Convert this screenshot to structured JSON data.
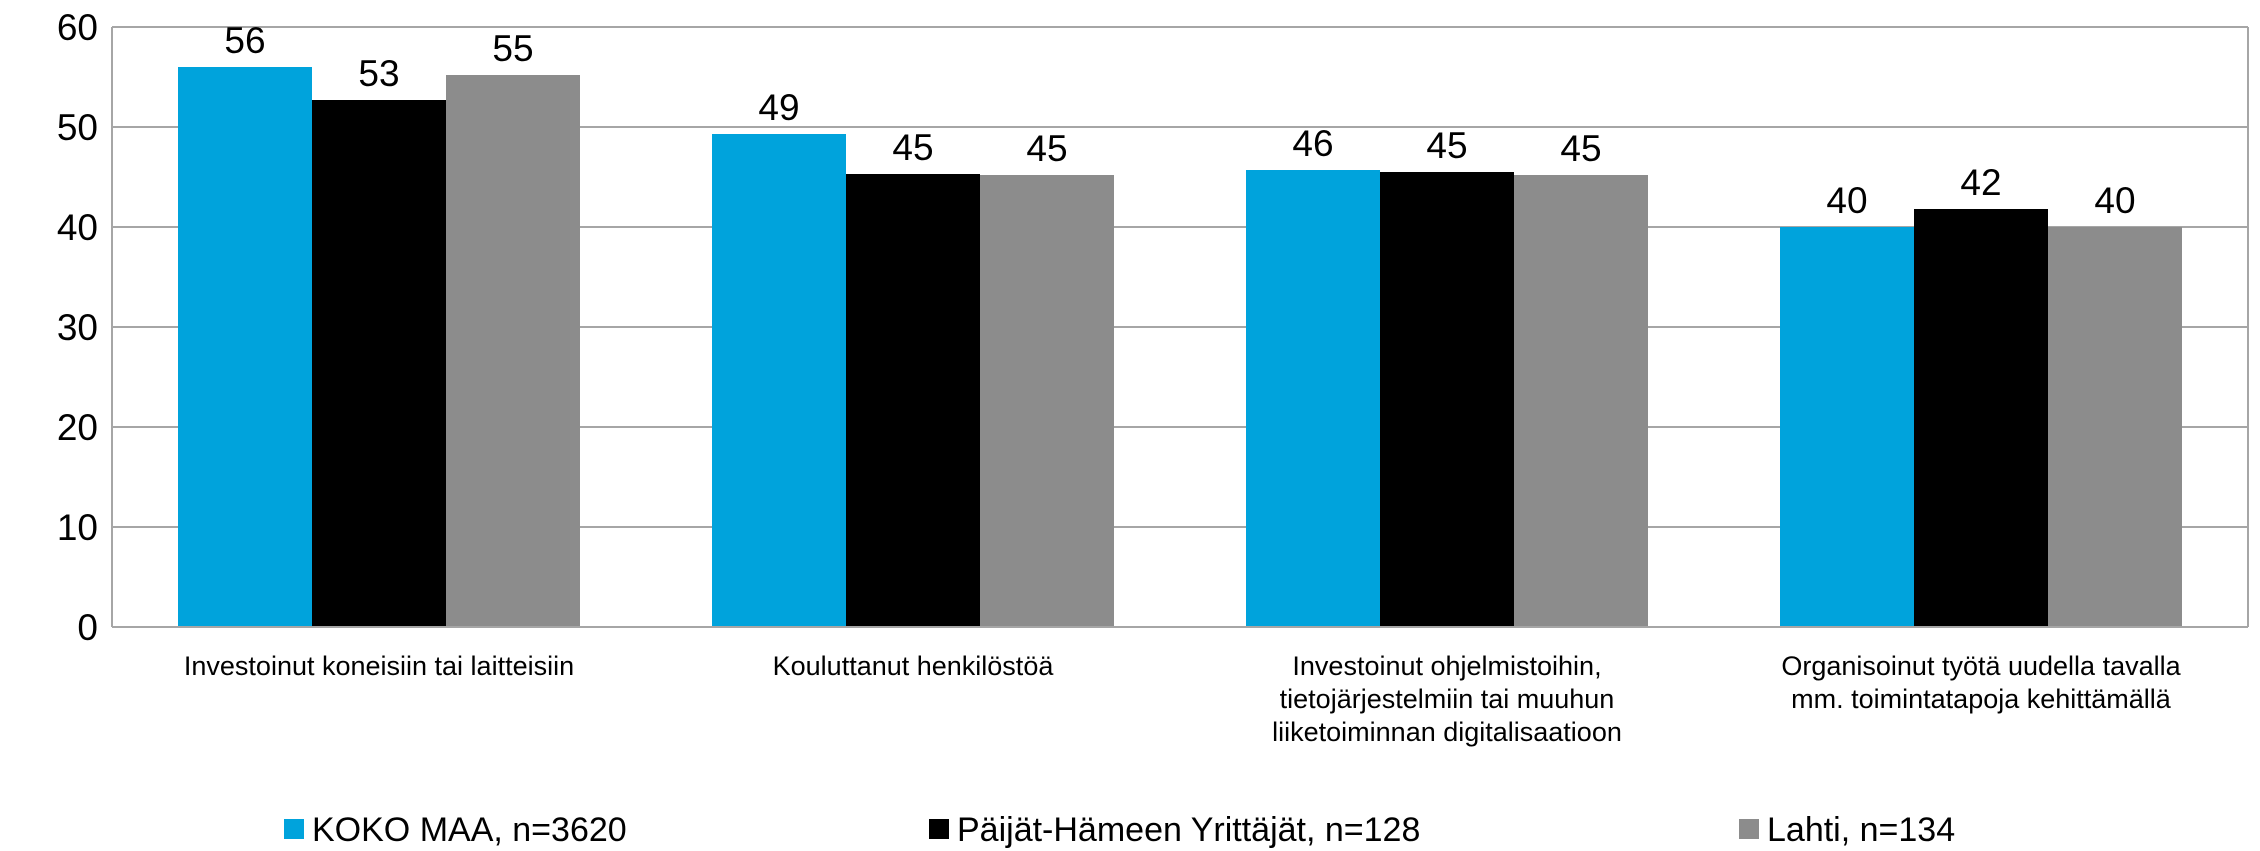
{
  "chart_data": {
    "type": "bar",
    "categories": [
      "Investoinut koneisiin tai laitteisiin",
      "Kouluttanut henkilöstöä",
      "Investoinut ohjelmistoihin,\ntietojärjestelmiin tai muuhun\nliiketoiminnan digitalisaatioon",
      "Organisoinut työtä uudella tavalla\nmm. toimintatapoja kehittämällä"
    ],
    "series": [
      {
        "name": "KOKO MAA, n=3620",
        "color": "#00a3dc",
        "values": [
          56,
          49.3,
          45.7,
          40
        ],
        "value_labels": [
          "56",
          "49",
          "46",
          "40"
        ]
      },
      {
        "name": "Päijät-Hämeen Yrittäjät, n=128",
        "color": "#000000",
        "values": [
          52.7,
          45.3,
          45.5,
          41.8
        ],
        "value_labels": [
          "53",
          "45",
          "45",
          "42"
        ]
      },
      {
        "name": "Lahti, n=134",
        "color": "#8c8c8c",
        "values": [
          55.2,
          45.2,
          45.2,
          40
        ],
        "value_labels": [
          "55",
          "45",
          "45",
          "40"
        ]
      }
    ],
    "ylim": [
      0,
      60
    ],
    "yticks": [
      0,
      10,
      20,
      30,
      40,
      50,
      60
    ],
    "grid": true,
    "legend": "bottom"
  }
}
